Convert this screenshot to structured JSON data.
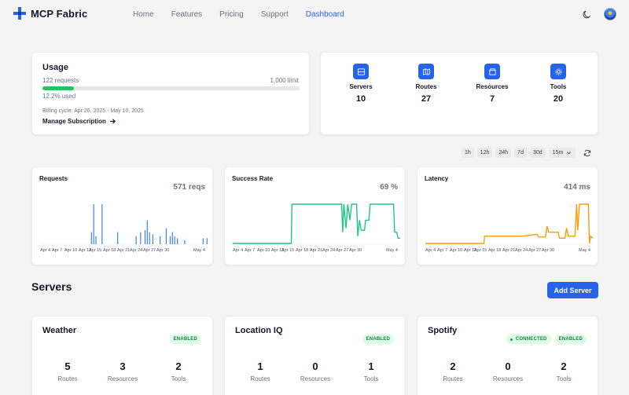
{
  "app": {
    "name": "MCP Fabric"
  },
  "nav": [
    {
      "label": "Home",
      "active": false
    },
    {
      "label": "Features",
      "active": false
    },
    {
      "label": "Pricing",
      "active": false
    },
    {
      "label": "Support",
      "active": false
    },
    {
      "label": "Dashboard",
      "active": true
    }
  ],
  "icons": {
    "logo": "plus-cross-logo",
    "theme": "moon-icon",
    "profile": "avatar"
  },
  "colors": {
    "accent": "#2563eb",
    "success": "#22c55e",
    "requests_series": "#3b82f6",
    "success_series": "#22c58a",
    "latency_series": "#f59e0b"
  },
  "usage": {
    "title": "Usage",
    "requests_text": "122 requests",
    "limit_text": "1,000 limit",
    "progress_fraction": 0.122,
    "used_text": "12.2% used",
    "billing": "Billing cycle: Apr 26, 2025 - May 10, 2025",
    "manage": "Manage Subscription"
  },
  "stats": [
    {
      "label": "Servers",
      "value": "10",
      "icon": "server-icon"
    },
    {
      "label": "Routes",
      "value": "27",
      "icon": "map-icon"
    },
    {
      "label": "Resources",
      "value": "7",
      "icon": "box-icon"
    },
    {
      "label": "Tools",
      "value": "20",
      "icon": "gear-icon"
    }
  ],
  "time_ranges": [
    "1h",
    "12h",
    "24h",
    "7d",
    "30d"
  ],
  "interval_select": "15m",
  "chart_data": [
    {
      "type": "bar",
      "title": "Requests",
      "summary": "571 reqs",
      "x_ticks": [
        "Apr 4",
        "Apr 7",
        "Apr 10",
        "Apr 13",
        "Apr 15",
        "Apr 18",
        "Apr 21",
        "Apr 24",
        "Apr 27",
        "Apr 30",
        "May 4"
      ],
      "points": [
        [
          13.2,
          0.3
        ],
        [
          13.6,
          1.0
        ],
        [
          14.0,
          0.2
        ],
        [
          15.1,
          1.0
        ],
        [
          17.9,
          0.3
        ],
        [
          21.2,
          0.2
        ],
        [
          22.0,
          0.3
        ],
        [
          22.8,
          0.35
        ],
        [
          23.2,
          0.6
        ],
        [
          23.6,
          0.3
        ],
        [
          24.2,
          0.25
        ],
        [
          25.5,
          0.2
        ],
        [
          26.6,
          0.4
        ],
        [
          27.3,
          0.2
        ],
        [
          27.7,
          0.3
        ],
        [
          28.1,
          0.2
        ],
        [
          28.6,
          0.15
        ],
        [
          29.9,
          0.1
        ],
        [
          33.2,
          0.15
        ],
        [
          33.9,
          0.15
        ]
      ]
    },
    {
      "type": "line",
      "title": "Success Rate",
      "summary": "69 %",
      "x_ticks": [
        "Apr 4",
        "Apr 7",
        "Apr 10",
        "Apr 13",
        "Apr 15",
        "Apr 18",
        "Apr 21",
        "Apr 24",
        "Apr 27",
        "Apr 30",
        "May 4"
      ],
      "points": [
        [
          4,
          0.02
        ],
        [
          14.5,
          0.02
        ],
        [
          14.6,
          1.0
        ],
        [
          23.5,
          1.0
        ],
        [
          23.7,
          0.3
        ],
        [
          23.9,
          1.0
        ],
        [
          24.3,
          0.4
        ],
        [
          24.6,
          1.0
        ],
        [
          25.0,
          0.6
        ],
        [
          25.3,
          1.0
        ],
        [
          26.2,
          1.0
        ],
        [
          26.4,
          0.2
        ],
        [
          26.7,
          0.6
        ],
        [
          27.0,
          0.35
        ],
        [
          27.6,
          0.35
        ],
        [
          27.8,
          0.6
        ],
        [
          28.4,
          0.6
        ],
        [
          28.6,
          1.0
        ],
        [
          32.8,
          1.0
        ],
        [
          33.0,
          0.3
        ],
        [
          33.4,
          0.3
        ],
        [
          33.6,
          0.15
        ],
        [
          34.0,
          0.15
        ]
      ]
    },
    {
      "type": "line",
      "title": "Latency",
      "summary": "414 ms",
      "x_ticks": [
        "Apr 4",
        "Apr 7",
        "Apr 10",
        "Apr 13",
        "Apr 15",
        "Apr 18",
        "Apr 21",
        "Apr 24",
        "Apr 27",
        "Apr 30",
        "May 4"
      ],
      "points": [
        [
          4,
          0.02
        ],
        [
          14.5,
          0.02
        ],
        [
          14.6,
          0.2
        ],
        [
          17.0,
          0.2
        ],
        [
          17.2,
          0.2
        ],
        [
          21.2,
          0.2
        ],
        [
          21.4,
          0.2
        ],
        [
          24.0,
          0.25
        ],
        [
          24.3,
          0.18
        ],
        [
          25.5,
          0.18
        ],
        [
          25.8,
          0.45
        ],
        [
          26.1,
          0.3
        ],
        [
          27.8,
          0.3
        ],
        [
          28.0,
          0.15
        ],
        [
          29.0,
          0.15
        ],
        [
          29.3,
          0.4
        ],
        [
          29.6,
          0.2
        ],
        [
          30.8,
          0.2
        ],
        [
          31.1,
          1.0
        ],
        [
          31.3,
          0.35
        ],
        [
          31.6,
          1.0
        ],
        [
          33.2,
          1.0
        ],
        [
          33.4,
          0.02
        ],
        [
          33.6,
          0.2
        ],
        [
          34.0,
          0.15
        ]
      ]
    }
  ],
  "servers": {
    "title": "Servers",
    "add_label": "Add Server",
    "items": [
      {
        "name": "Weather",
        "badges": [
          {
            "text": "ENABLED",
            "dot": false
          }
        ],
        "routes": "5",
        "resources": "3",
        "tools": "2"
      },
      {
        "name": "Location IQ",
        "badges": [
          {
            "text": "ENABLED",
            "dot": false
          }
        ],
        "routes": "1",
        "resources": "0",
        "tools": "1"
      },
      {
        "name": "Spotify",
        "badges": [
          {
            "text": "CONNECTED",
            "dot": true
          },
          {
            "text": "ENABLED",
            "dot": false
          }
        ],
        "routes": "2",
        "resources": "0",
        "tools": "2"
      }
    ],
    "stat_labels": {
      "routes": "Routes",
      "resources": "Resources",
      "tools": "Tools"
    }
  }
}
